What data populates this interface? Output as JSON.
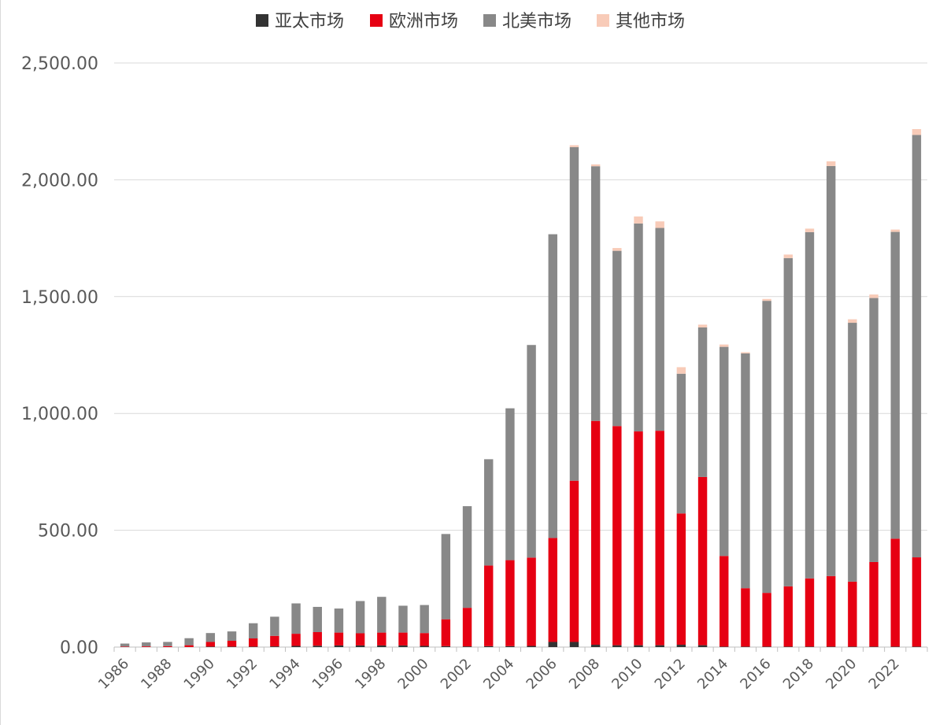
{
  "chart_data": {
    "type": "bar",
    "stacked": true,
    "title": "",
    "xlabel": "",
    "ylabel": "",
    "ylim": [
      0,
      2500
    ],
    "yticks": [
      "0.00",
      "500.00",
      "1,000.00",
      "1,500.00",
      "2,000.00",
      "2,500.00"
    ],
    "grid": true,
    "legend_position": "top",
    "categories": [
      "1986",
      "1987",
      "1988",
      "1989",
      "1990",
      "1991",
      "1992",
      "1993",
      "1994",
      "1995",
      "1996",
      "1997",
      "1998",
      "1999",
      "2000",
      "2001",
      "2002",
      "2003",
      "2004",
      "2005",
      "2006",
      "2007",
      "2008",
      "2009",
      "2010",
      "2011",
      "2012",
      "2013",
      "2014",
      "2015",
      "2016",
      "2017",
      "2018",
      "2019",
      "2020",
      "2021",
      "2022",
      "2023"
    ],
    "xtick_labels": [
      "1986",
      "",
      "1988",
      "",
      "1990",
      "",
      "1992",
      "",
      "1994",
      "",
      "1996",
      "",
      "1998",
      "",
      "2000",
      "",
      "2002",
      "",
      "2004",
      "",
      "2006",
      "",
      "2008",
      "",
      "2010",
      "",
      "2012",
      "",
      "2014",
      "",
      "2016",
      "",
      "2018",
      "",
      "2020",
      "",
      "2022",
      ""
    ],
    "series": [
      {
        "name": "亚太市场",
        "color": "#333333",
        "values": [
          0,
          0,
          0,
          0,
          2,
          2,
          2,
          3,
          5,
          6,
          7,
          7,
          7,
          7,
          5,
          4,
          3,
          4,
          4,
          5,
          22,
          22,
          10,
          8,
          8,
          8,
          10,
          8,
          2,
          2,
          2,
          2,
          2,
          2,
          2,
          2,
          2,
          2
        ]
      },
      {
        "name": "欧洲市场",
        "color": "#e60012",
        "values": [
          2,
          3,
          4,
          8,
          20,
          25,
          35,
          45,
          52,
          58,
          55,
          52,
          55,
          55,
          55,
          115,
          165,
          345,
          368,
          378,
          445,
          690,
          958,
          938,
          915,
          918,
          562,
          720,
          388,
          250,
          230,
          258,
          292,
          302,
          278,
          362,
          462,
          382
        ]
      },
      {
        "name": "北美市场",
        "color": "#888888",
        "values": [
          13,
          17,
          18,
          30,
          38,
          40,
          65,
          82,
          130,
          108,
          103,
          138,
          153,
          115,
          120,
          365,
          435,
          455,
          650,
          910,
          1300,
          1428,
          1090,
          750,
          890,
          868,
          598,
          640,
          895,
          1005,
          1250,
          1405,
          1482,
          1755,
          1108,
          1130,
          1313,
          1808
        ]
      },
      {
        "name": "其他市场",
        "color": "#f8cbb8",
        "values": [
          0,
          0,
          0,
          0,
          0,
          0,
          0,
          0,
          0,
          0,
          0,
          0,
          0,
          0,
          0,
          0,
          0,
          0,
          0,
          0,
          0,
          8,
          8,
          12,
          30,
          28,
          28,
          12,
          10,
          5,
          8,
          15,
          15,
          20,
          15,
          15,
          10,
          25
        ]
      }
    ]
  }
}
